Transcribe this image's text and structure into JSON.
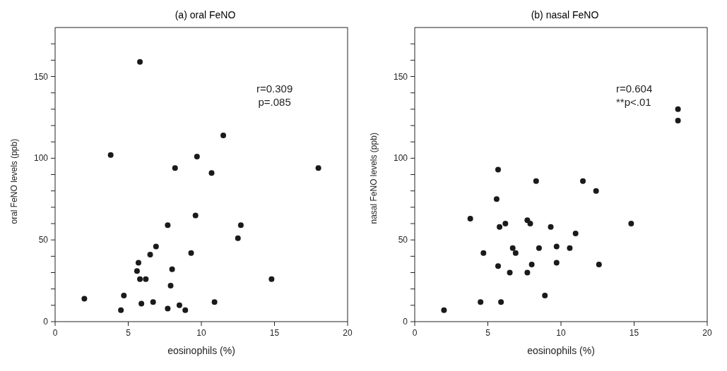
{
  "chart_data": [
    {
      "type": "scatter",
      "title": "(a) oral FeNO",
      "xlabel": "eosinophils (%)",
      "ylabel": "oral FeNO levels (ppb)",
      "annotations": [
        "r=0.309",
        "p=.085"
      ],
      "marker": "circle",
      "xlim": [
        0,
        20
      ],
      "ylim": [
        0,
        180
      ],
      "xticks": [
        0,
        5,
        10,
        15,
        20
      ],
      "yticks": [
        0,
        {
          "value": 10,
          "label": null
        },
        {
          "value": 20,
          "label": null
        },
        {
          "value": 30,
          "label": null
        },
        {
          "value": 40,
          "label": null
        },
        50,
        {
          "value": 60,
          "label": null
        },
        {
          "value": 70,
          "label": null
        },
        {
          "value": 80,
          "label": null
        },
        {
          "value": 90,
          "label": null
        },
        100,
        {
          "value": 110,
          "label": null
        },
        {
          "value": 120,
          "label": null
        },
        {
          "value": 130,
          "label": null
        },
        {
          "value": 140,
          "label": null
        },
        150,
        {
          "value": 160,
          "label": null
        },
        {
          "value": 170,
          "label": null
        }
      ],
      "series": [
        {
          "color": "#1a1a1a",
          "x": [
            5.8,
            3.8,
            11.5,
            9.7,
            8.2,
            10.7,
            18.0,
            9.6,
            7.7,
            12.7,
            12.5,
            6.9,
            6.5,
            9.3,
            5.7,
            5.6,
            8.0,
            5.8,
            6.2,
            7.9,
            14.8,
            2.0,
            4.7,
            5.9,
            6.7,
            10.9,
            4.5,
            7.7,
            8.5,
            8.9
          ],
          "values": [
            159,
            102,
            114,
            101,
            94,
            91,
            94,
            65,
            59,
            59,
            51,
            46,
            41,
            42,
            36,
            31,
            32,
            26,
            26,
            22,
            26,
            14,
            16,
            11,
            12,
            12,
            7,
            8,
            10,
            7
          ]
        }
      ]
    },
    {
      "type": "scatter",
      "title": "(b) nasal FeNO",
      "xlabel": "eosinophils (%)",
      "ylabel": "nasal FeNO levels (ppb)",
      "annotations": [
        "r=0.604",
        "**p<.01"
      ],
      "marker": "circle",
      "xlim": [
        0,
        20
      ],
      "ylim": [
        0,
        180
      ],
      "xticks": [
        0,
        5,
        10,
        15,
        20
      ],
      "yticks": [
        0,
        {
          "value": 10,
          "label": null
        },
        {
          "value": 20,
          "label": null
        },
        {
          "value": 30,
          "label": null
        },
        {
          "value": 40,
          "label": null
        },
        50,
        {
          "value": 60,
          "label": null
        },
        {
          "value": 70,
          "label": null
        },
        {
          "value": 80,
          "label": null
        },
        {
          "value": 90,
          "label": null
        },
        100,
        {
          "value": 110,
          "label": null
        },
        {
          "value": 120,
          "label": null
        },
        {
          "value": 130,
          "label": null
        },
        {
          "value": 140,
          "label": null
        },
        150,
        {
          "value": 160,
          "label": null
        },
        {
          "value": 170,
          "label": null
        }
      ],
      "series": [
        {
          "color": "#1a1a1a",
          "x": [
            18.0,
            18.0,
            5.7,
            8.3,
            11.5,
            12.4,
            5.6,
            3.8,
            5.8,
            6.2,
            7.7,
            7.9,
            9.3,
            11.0,
            14.8,
            4.7,
            6.7,
            6.9,
            8.5,
            9.7,
            10.6,
            5.7,
            8.0,
            9.7,
            12.6,
            6.5,
            7.7,
            8.9,
            4.5,
            5.9,
            2.0
          ],
          "values": [
            130,
            123,
            93,
            86,
            86,
            80,
            75,
            63,
            58,
            60,
            62,
            60,
            58,
            54,
            60,
            42,
            45,
            42,
            45,
            46,
            45,
            34,
            35,
            36,
            35,
            30,
            30,
            16,
            12,
            12,
            7
          ]
        }
      ]
    }
  ]
}
